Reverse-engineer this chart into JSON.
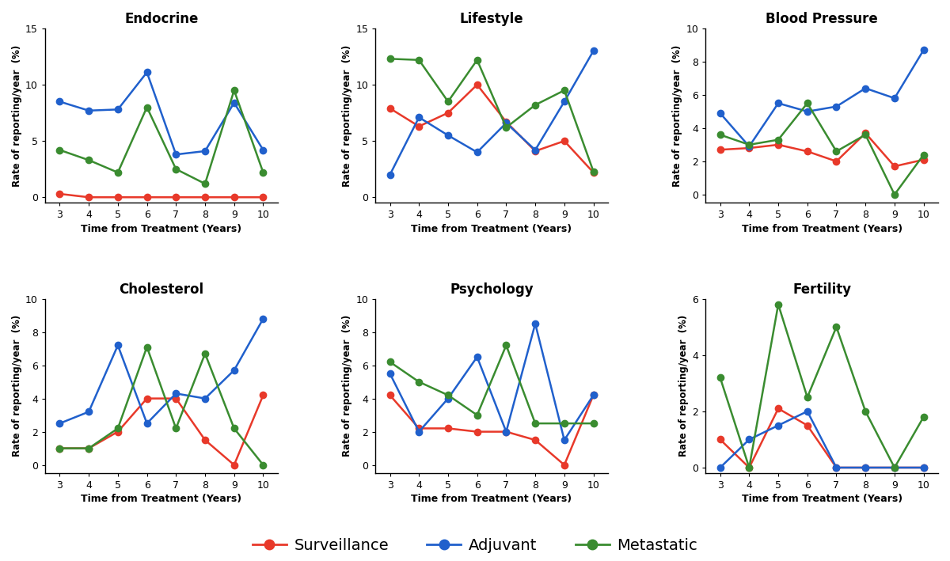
{
  "x": [
    3,
    4,
    5,
    6,
    7,
    8,
    9,
    10
  ],
  "subplots": [
    {
      "title": "Endocrine",
      "ylim": [
        -0.5,
        15
      ],
      "yticks": [
        0,
        5,
        10,
        15
      ],
      "surveillance": [
        0.3,
        0.0,
        0.0,
        0.0,
        0.0,
        0.0,
        0.0,
        0.0
      ],
      "adjuvant": [
        8.5,
        7.7,
        7.8,
        11.1,
        3.8,
        4.1,
        8.4,
        4.2
      ],
      "metastatic": [
        4.2,
        3.3,
        2.2,
        8.0,
        2.5,
        1.2,
        9.5,
        2.2
      ]
    },
    {
      "title": "Lifestyle",
      "ylim": [
        -0.5,
        15
      ],
      "yticks": [
        0,
        5,
        10,
        15
      ],
      "surveillance": [
        7.9,
        6.3,
        7.5,
        10.0,
        6.7,
        4.1,
        5.0,
        2.2
      ],
      "adjuvant": [
        2.0,
        7.1,
        5.5,
        4.0,
        6.6,
        4.2,
        8.5,
        13.0
      ],
      "metastatic": [
        12.3,
        12.2,
        8.5,
        12.2,
        6.2,
        8.2,
        9.5,
        2.3
      ]
    },
    {
      "title": "Blood Pressure",
      "ylim": [
        -0.5,
        10
      ],
      "yticks": [
        0,
        2,
        4,
        6,
        8,
        10
      ],
      "surveillance": [
        2.7,
        2.8,
        3.0,
        2.6,
        2.0,
        3.7,
        1.7,
        2.1
      ],
      "adjuvant": [
        4.9,
        2.9,
        5.5,
        5.0,
        5.3,
        6.4,
        5.8,
        8.7
      ],
      "metastatic": [
        3.6,
        3.0,
        3.3,
        5.5,
        2.6,
        3.6,
        0.0,
        2.4
      ]
    },
    {
      "title": "Cholesterol",
      "ylim": [
        -0.5,
        10
      ],
      "yticks": [
        0,
        2,
        4,
        6,
        8,
        10
      ],
      "surveillance": [
        1.0,
        1.0,
        2.0,
        4.0,
        4.0,
        1.5,
        0.0,
        4.2
      ],
      "adjuvant": [
        2.5,
        3.2,
        7.2,
        2.5,
        4.3,
        4.0,
        5.7,
        8.8
      ],
      "metastatic": [
        1.0,
        1.0,
        2.2,
        7.1,
        2.2,
        6.7,
        2.2,
        0.0
      ]
    },
    {
      "title": "Psychology",
      "ylim": [
        -0.5,
        10
      ],
      "yticks": [
        0,
        2,
        4,
        6,
        8,
        10
      ],
      "surveillance": [
        4.2,
        2.2,
        2.2,
        2.0,
        2.0,
        1.5,
        0.0,
        4.2
      ],
      "adjuvant": [
        5.5,
        2.0,
        4.0,
        6.5,
        2.0,
        8.5,
        1.5,
        4.2
      ],
      "metastatic": [
        6.2,
        5.0,
        4.2,
        3.0,
        7.2,
        2.5,
        2.5,
        2.5
      ]
    },
    {
      "title": "Fertility",
      "ylim": [
        -0.2,
        6
      ],
      "yticks": [
        0,
        2,
        4,
        6
      ],
      "surveillance": [
        1.0,
        0.0,
        2.1,
        1.5,
        0.0,
        0.0,
        0.0,
        0.0
      ],
      "adjuvant": [
        0.0,
        1.0,
        1.5,
        2.0,
        0.0,
        0.0,
        0.0,
        0.0
      ],
      "metastatic": [
        3.2,
        0.0,
        5.8,
        2.5,
        5.0,
        2.0,
        0.0,
        1.8
      ]
    }
  ],
  "colors": {
    "surveillance": "#E8392A",
    "adjuvant": "#2060CC",
    "metastatic": "#3A8C30"
  },
  "legend": {
    "surveillance": "Surveillance",
    "adjuvant": "Adjuvant",
    "metastatic": "Metastatic"
  },
  "xlabel": "Time from Treatment (Years)",
  "ylabel": "Rate of reporting/year  (%)",
  "marker": "o",
  "markersize": 6,
  "linewidth": 1.8,
  "figsize": [
    12.0,
    7.09
  ],
  "dpi": 100
}
